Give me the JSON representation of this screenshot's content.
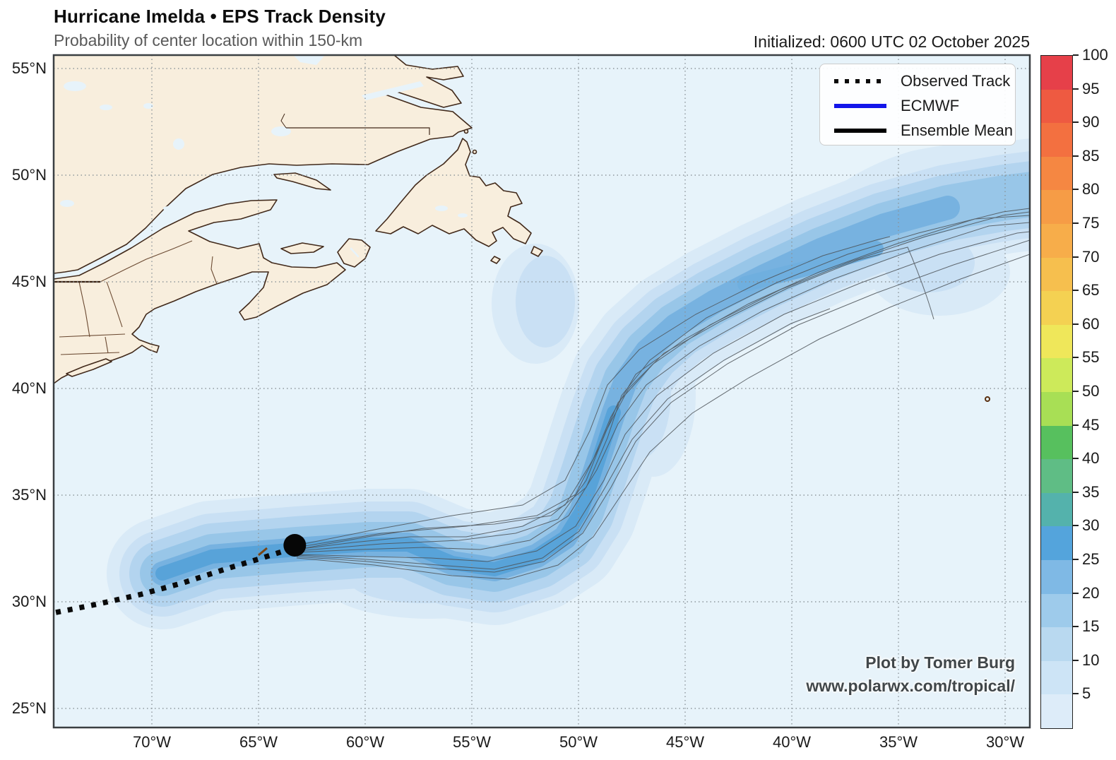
{
  "header": {
    "title": "Hurricane Imelda • EPS Track Density",
    "subtitle": "Probability of center location within 150-km",
    "initialized": "Initialized: 0600 UTC 02 October 2025"
  },
  "legend": {
    "items": [
      {
        "label": "Observed Track",
        "style": "dotted-black",
        "color": "#0a0a0a"
      },
      {
        "label": "ECMWF",
        "style": "solid-blue",
        "color": "#1315ea"
      },
      {
        "label": "Ensemble Mean",
        "style": "solid-black",
        "color": "#000000"
      }
    ]
  },
  "colorbar": {
    "values": [
      100,
      95,
      90,
      85,
      80,
      75,
      70,
      65,
      60,
      55,
      50,
      45,
      40,
      35,
      30,
      25,
      20,
      15,
      10,
      5
    ],
    "colors": [
      "#e64049",
      "#ee5a41",
      "#f37040",
      "#f58742",
      "#f69c46",
      "#f7ad4a",
      "#f6bf4e",
      "#f4d152",
      "#efe75a",
      "#cdea5a",
      "#a8df55",
      "#57c05e",
      "#5fbd85",
      "#54b2ac",
      "#54a4dc",
      "#7fb9e5",
      "#9ecbeb",
      "#b9d9f0",
      "#cde4f6",
      "#ddecf9"
    ]
  },
  "axes": {
    "lat_labels": [
      "55°N",
      "50°N",
      "45°N",
      "40°N",
      "35°N",
      "30°N",
      "25°N"
    ],
    "lon_labels": [
      "70°W",
      "65°W",
      "60°W",
      "55°W",
      "50°W",
      "45°W",
      "40°W",
      "35°W",
      "30°W"
    ]
  },
  "credits": {
    "line1": "Plot by Tomer Burg",
    "line2": "www.polarwx.com/tropical/"
  },
  "map": {
    "density_levels": [
      5,
      10,
      15,
      20,
      25,
      30
    ],
    "density_colors": [
      "#d9eaf7",
      "#c9e0f4",
      "#b3d4ef",
      "#98c6e8",
      "#77b2e0",
      "#58a3d9"
    ],
    "colors": {
      "ocean": "#e7f3fa",
      "land": "#f8eedd",
      "coastline": "#41291a",
      "grid": "#8a9398"
    },
    "observed_track": [
      [
        -74.5,
        29.5
      ],
      [
        -72.5,
        29.9
      ],
      [
        -70.5,
        30.35
      ],
      [
        -68.5,
        30.9
      ],
      [
        -66.5,
        31.55
      ],
      [
        -65.0,
        32.0
      ],
      [
        -63.9,
        32.35
      ],
      [
        -63.3,
        32.65
      ]
    ],
    "current_position": {
      "lon": -63.3,
      "lat": 32.65
    }
  }
}
